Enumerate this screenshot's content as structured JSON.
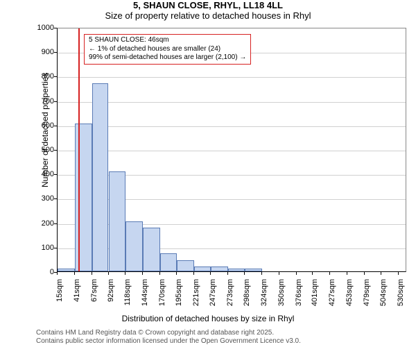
{
  "title": "5, SHAUN CLOSE, RHYL, LL18 4LL",
  "subtitle": "Size of property relative to detached houses in Rhyl",
  "chart": {
    "type": "histogram",
    "background_color": "#ffffff",
    "grid_color": "#d0d0d0",
    "axis_color": "#000000",
    "bar_fill": "#c6d6f0",
    "bar_stroke": "#5a7bb5",
    "marker_color": "#d62020",
    "ylabel": "Number of detached properties",
    "xlabel": "Distribution of detached houses by size in Rhyl",
    "label_fontsize": 12,
    "tick_fontsize": 11,
    "ylim": [
      0,
      1000
    ],
    "ytick_step": 100,
    "xlim": [
      15,
      543
    ],
    "xticks": [
      15,
      41,
      67,
      92,
      118,
      144,
      170,
      195,
      221,
      247,
      273,
      298,
      324,
      350,
      376,
      401,
      427,
      453,
      479,
      504,
      530
    ],
    "xtick_labels": [
      "15sqm",
      "41sqm",
      "67sqm",
      "92sqm",
      "118sqm",
      "144sqm",
      "170sqm",
      "195sqm",
      "221sqm",
      "247sqm",
      "273sqm",
      "298sqm",
      "324sqm",
      "350sqm",
      "376sqm",
      "401sqm",
      "427sqm",
      "453sqm",
      "479sqm",
      "504sqm",
      "530sqm"
    ],
    "bars": [
      {
        "x0": 15,
        "x1": 41,
        "y": 10
      },
      {
        "x0": 41,
        "x1": 67,
        "y": 605
      },
      {
        "x0": 67,
        "x1": 92,
        "y": 770
      },
      {
        "x0": 92,
        "x1": 118,
        "y": 410
      },
      {
        "x0": 118,
        "x1": 144,
        "y": 205
      },
      {
        "x0": 144,
        "x1": 170,
        "y": 180
      },
      {
        "x0": 170,
        "x1": 195,
        "y": 75
      },
      {
        "x0": 195,
        "x1": 221,
        "y": 45
      },
      {
        "x0": 221,
        "x1": 247,
        "y": 20
      },
      {
        "x0": 247,
        "x1": 273,
        "y": 20
      },
      {
        "x0": 273,
        "x1": 298,
        "y": 10
      },
      {
        "x0": 298,
        "x1": 324,
        "y": 10
      }
    ],
    "marker_x": 46,
    "info_box": {
      "line1": "5 SHAUN CLOSE: 46sqm",
      "line2": "← 1% of detached houses are smaller (24)",
      "line3": "99% of semi-detached houses are larger (2,100) →"
    }
  },
  "footer": {
    "line1": "Contains HM Land Registry data © Crown copyright and database right 2025.",
    "line2": "Contains public sector information licensed under the Open Government Licence v3.0."
  }
}
